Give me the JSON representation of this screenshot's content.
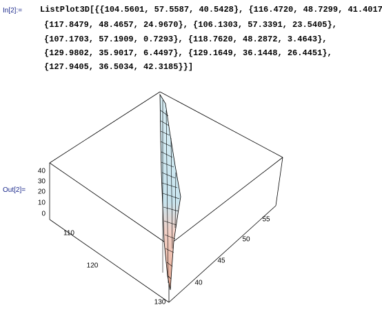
{
  "input": {
    "label": "In[2]:=",
    "lines": [
      "ListPlot3D[{{104.5601, 57.5587, 40.5428}, {116.4720, 48.7299, 41.4017},",
      "{117.8479, 48.4657, 24.9670}, {106.1303, 57.3391, 23.5405},",
      "{107.1703, 57.1909, 0.7293}, {118.7620, 48.2872, 3.4643},",
      "{129.9802, 35.9017, 6.4497}, {129.1649, 36.1448, 26.4451},",
      "{127.9405, 36.5034, 42.3185}}]"
    ]
  },
  "output": {
    "label": "Out[2]=",
    "z_ticks": [
      40,
      30,
      20,
      10,
      0
    ],
    "x_ticks": [
      110,
      120,
      130
    ],
    "y_ticks": [
      55,
      50,
      45,
      40
    ]
  }
}
